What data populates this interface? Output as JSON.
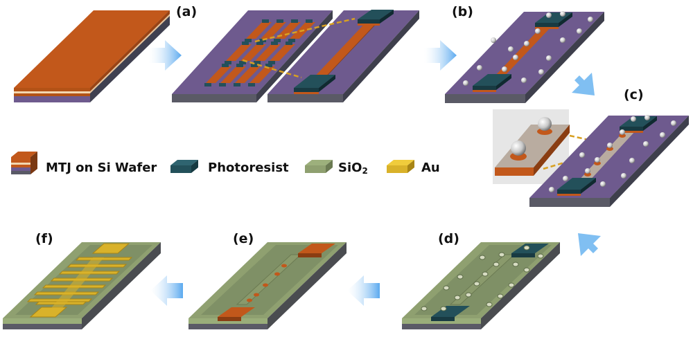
{
  "panels": {
    "a": "(a)",
    "b": "(b)",
    "c": "(c)",
    "d": "(d)",
    "e": "(e)",
    "f": "(f)"
  },
  "legend": {
    "mtj": "MTJ on Si Wafer",
    "photoresist": "Photoresist",
    "sio2_base": "SiO",
    "sio2_sub": "2",
    "au": "Au"
  },
  "colors": {
    "mtj": "#c2581b",
    "mtj_dark": "#8a3d12",
    "wafer_top": "#6e5a8e",
    "wafer_side": "#595a66",
    "photoresist": "#23505a",
    "sio2": "#8fa070",
    "au": "#d9b22a",
    "arrow": "#6ab4f0",
    "dash": "#d8a022"
  }
}
